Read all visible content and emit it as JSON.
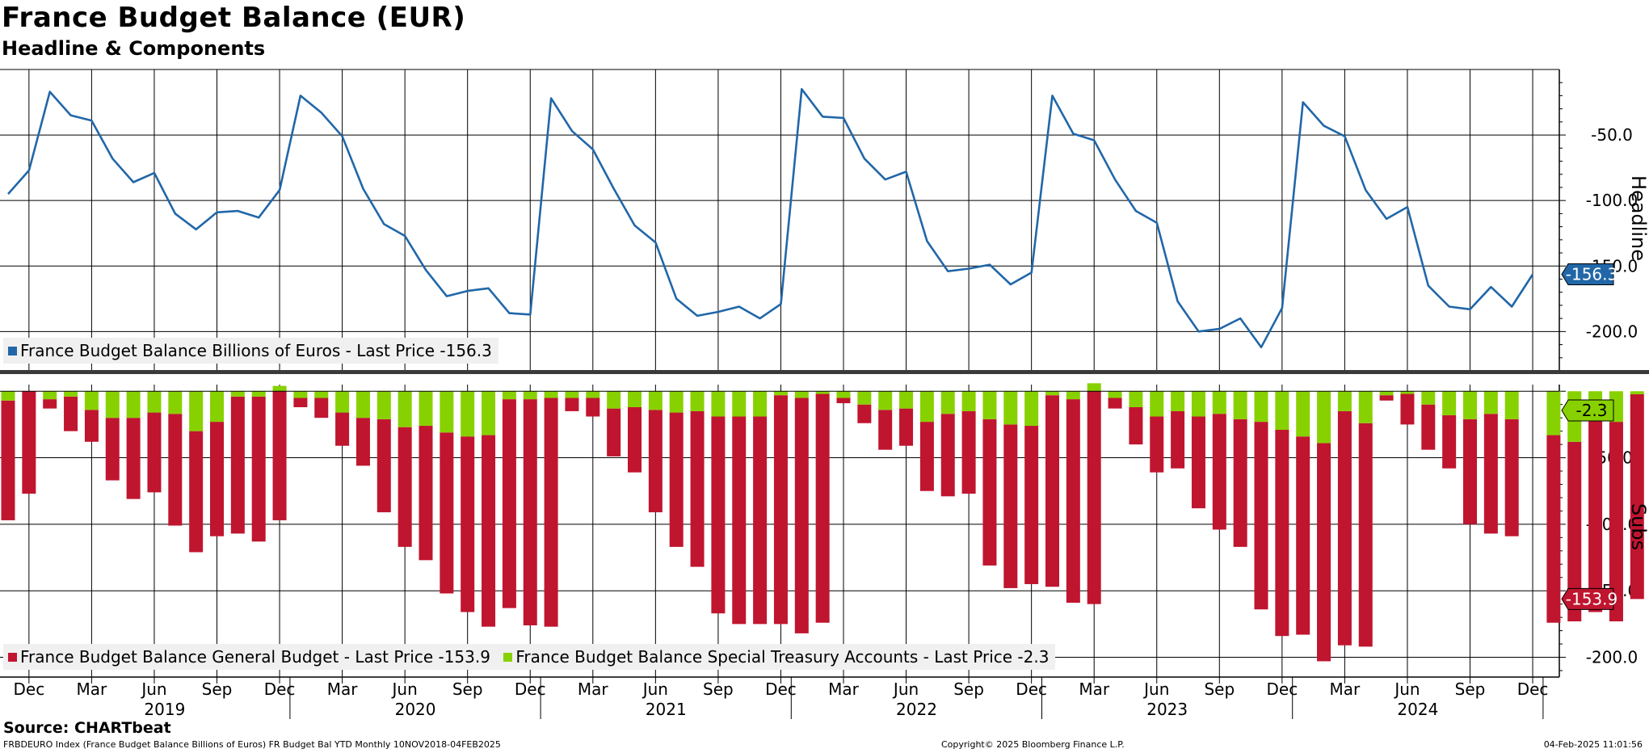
{
  "title": "France Budget Balance (EUR)",
  "subtitle": "Headline & Components",
  "source": "Source: CHARTbeat",
  "footer": {
    "left": "FRBDEURO Index (France Budget Balance Billions of Euros) FR Budget Bal YTD  Monthly 10NOV2018-04FEB2025",
    "center": "Copyright© 2025 Bloomberg Finance L.P.",
    "right": "04-Feb-2025 11:01:56"
  },
  "colors": {
    "headline": "#2167a8",
    "general": "#c0152f",
    "special": "#88d100"
  },
  "chart_data": [
    {
      "type": "line",
      "panel_label": "Headline",
      "x_start": "2018-11",
      "ylim": [
        -230,
        0
      ],
      "yticks": [
        -50,
        -100,
        -150,
        -200
      ],
      "ytick_labels": [
        "-50.0",
        "-100.0",
        "-150.0",
        "-200.0"
      ],
      "grid": true,
      "legend": "France Budget Balance Billions of Euros - Last Price -156.3",
      "last_label": "-156.3",
      "series": [
        {
          "name": "France Budget Balance Billions of Euros",
          "values": [
            -95,
            -77,
            -17,
            -35,
            -39,
            -68,
            -86,
            -79,
            -110,
            -122,
            -109,
            -108,
            -113,
            -92,
            -20,
            -33,
            -51,
            -91,
            -118,
            -127,
            -153,
            -173,
            -169,
            -167,
            -186,
            -187,
            -22,
            -47,
            -61,
            -91,
            -119,
            -132,
            -175,
            -188,
            -185,
            -181,
            -190,
            -179,
            -15,
            -36,
            -37,
            -68,
            -84,
            -78,
            -131,
            -154,
            -152,
            -149,
            -164,
            -155,
            -20,
            -49,
            -54,
            -84,
            -108,
            -117,
            -177,
            -200,
            -198,
            -190,
            -212,
            -182,
            -25,
            -43,
            -51,
            -92,
            -114,
            -105,
            -165,
            -181,
            -183,
            -166,
            -181,
            -156.3
          ]
        }
      ]
    },
    {
      "type": "bar",
      "stacked": true,
      "panel_label": "Subs",
      "x_start": "2018-11",
      "ylim": [
        -210,
        5
      ],
      "yticks": [
        -50,
        -100,
        -150,
        -200
      ],
      "ytick_labels": [
        "-50.0",
        "-100.0",
        "-150.0",
        "-200.0"
      ],
      "grid": true,
      "legend_items": [
        "France Budget Balance General Budget - Last Price -153.9",
        "France Budget Balance Special Treasury Accounts - Last Price -2.3"
      ],
      "last_labels": [
        "-153.9",
        "-2.3"
      ],
      "series": [
        {
          "name": "France Budget Balance General Budget",
          "values": [
            -90,
            -77,
            -7,
            -26,
            -24,
            -47,
            -61,
            -60,
            -84,
            -91,
            -86,
            -103,
            -109,
            -97,
            -7,
            -15,
            -25,
            -36,
            -70,
            -90,
            -101,
            -121,
            -132,
            -144,
            -157,
            -170,
            -172,
            -10,
            -14,
            -36,
            -49,
            -77,
            -101,
            -117,
            -148,
            -156,
            -156,
            -172,
            -177,
            -172,
            -4,
            -14,
            -30,
            -28,
            -52,
            -62,
            -62,
            -110,
            -123,
            -119,
            -144,
            -153,
            -160,
            -8,
            -28,
            -42,
            -43,
            -69,
            -87,
            -96,
            -141,
            -155,
            -149,
            -164,
            -176,
            -168,
            -4,
            -23,
            -34,
            -40,
            -79,
            -90,
            -88,
            0,
            -141,
            -135,
            -147,
            -150,
            -153.9
          ]
        },
        {
          "name": "France Budget Balance Special Treasury Accounts",
          "values": [
            -7,
            0,
            -6,
            -4,
            -14,
            -20,
            -20,
            -16,
            -17,
            -30,
            -23,
            -4,
            -4,
            4,
            -5,
            -5,
            -16,
            -20,
            -21,
            -27,
            -26,
            -31,
            -34,
            -33,
            -6,
            -6,
            -5,
            -5,
            -5,
            -13,
            -12,
            -14,
            -16,
            -15,
            -19,
            -19,
            -19,
            -3,
            -5,
            -2,
            -5,
            -10,
            -14,
            -13,
            -23,
            -17,
            -15,
            -21,
            -25,
            -26,
            -3,
            -6,
            6,
            -5,
            -12,
            -19,
            -15,
            -19,
            -17,
            -21,
            -23,
            -29,
            -34,
            -39,
            -15,
            -24,
            -3,
            -2,
            -10,
            -18,
            -21,
            -17,
            -21,
            0,
            -33,
            -38,
            -19,
            -23,
            -2.3
          ]
        }
      ]
    }
  ],
  "xaxis": {
    "month_labels": [
      "Dec",
      "Mar",
      "Jun",
      "Sep",
      "Dec",
      "Mar",
      "Jun",
      "Sep",
      "Dec",
      "Mar",
      "Jun",
      "Sep",
      "Dec",
      "Mar",
      "Jun",
      "Sep",
      "Dec",
      "Mar",
      "Jun",
      "Sep",
      "Dec",
      "Mar",
      "Jun",
      "Sep",
      "Dec"
    ],
    "year_labels": [
      "2019",
      "2020",
      "2021",
      "2022",
      "2023",
      "2024"
    ]
  }
}
